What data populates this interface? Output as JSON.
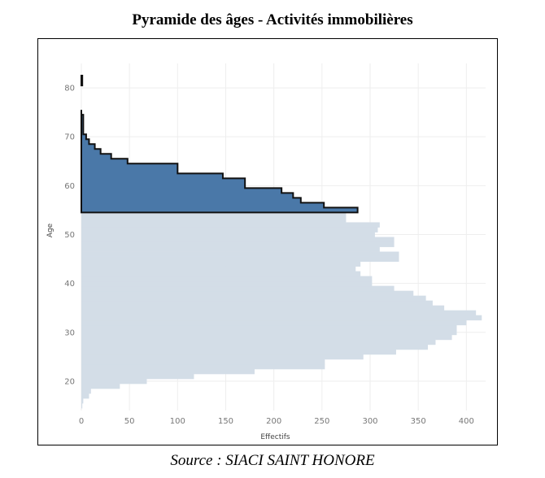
{
  "title": "Pyramide des âges - Activités immobilières",
  "source": "Source : SIACI SAINT HONORE",
  "chart_data": {
    "type": "bar",
    "orientation": "horizontal",
    "title": "Pyramide des âges - Activités immobilières",
    "xlabel": "Effectifs",
    "ylabel": "Age",
    "xlim": [
      0,
      420
    ],
    "ylim": [
      14,
      85
    ],
    "xticks": [
      0,
      50,
      100,
      150,
      200,
      250,
      300,
      350,
      400
    ],
    "yticks": [
      20,
      30,
      40,
      50,
      60,
      70,
      80
    ],
    "grid": true,
    "colors": {
      "highlight": "#4a78a8",
      "base": "#d3dde7",
      "outline": "#111111"
    },
    "series": [
      {
        "name": "",
        "ages": [
          15,
          16,
          17,
          18,
          19,
          20,
          21,
          22,
          23,
          24,
          25,
          26,
          27,
          28,
          29,
          30,
          31,
          32,
          33,
          34,
          35,
          36,
          37,
          38,
          39,
          40,
          41,
          42,
          43,
          44,
          45,
          46,
          47,
          48,
          49,
          50,
          51,
          52,
          53,
          54
        ],
        "values": [
          1,
          2,
          8,
          10,
          40,
          68,
          117,
          180,
          253,
          253,
          293,
          327,
          360,
          368,
          385,
          390,
          390,
          400,
          416,
          410,
          377,
          365,
          358,
          345,
          325,
          302,
          302,
          290,
          285,
          290,
          330,
          330,
          310,
          325,
          325,
          305,
          308,
          310,
          275,
          275
        ]
      },
      {
        "name": "",
        "ages": [
          55,
          56,
          57,
          58,
          59,
          60,
          61,
          62,
          63,
          64,
          65,
          66,
          67,
          68,
          69,
          70,
          71,
          72,
          73,
          74,
          75,
          81,
          82
        ],
        "values": [
          287,
          252,
          228,
          220,
          208,
          170,
          170,
          147,
          100,
          100,
          48,
          31,
          20,
          14,
          8,
          5,
          2,
          2,
          2,
          2,
          0,
          1,
          1
        ]
      }
    ]
  }
}
